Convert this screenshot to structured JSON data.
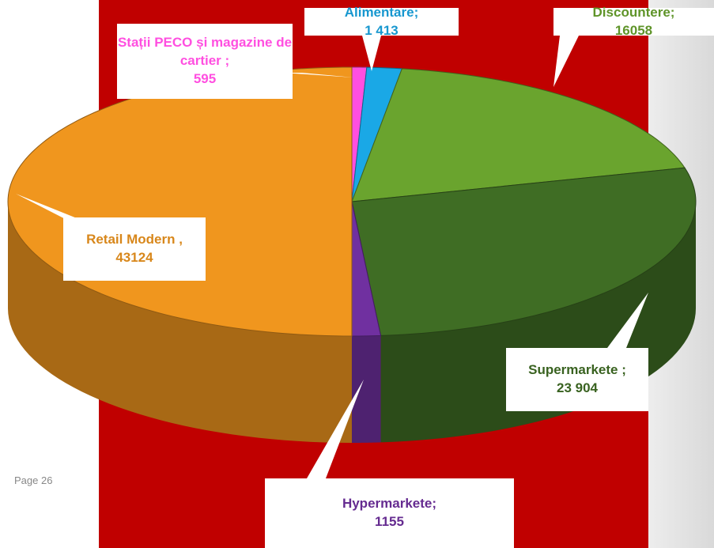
{
  "chart_data": {
    "type": "pie",
    "categories": [
      "Stații PECO și magazine de cartier",
      "Alimentare",
      "Discountere",
      "Supermarkete",
      "Hypermarkete",
      "Retail Modern"
    ],
    "separators": [
      " ;",
      ";",
      ";",
      " ;",
      ";",
      " ,"
    ],
    "values": [
      595,
      1413,
      16058,
      23904,
      1155,
      43124
    ],
    "value_labels": [
      "595",
      "1 413",
      "16058",
      "23 904",
      "1155",
      "43124"
    ],
    "colors": [
      "#ff4fe0",
      "#1aa8e6",
      "#6aa42e",
      "#3f6d24",
      "#7030a0",
      "#f0961e"
    ]
  },
  "footer": {
    "page": "Page 26"
  }
}
